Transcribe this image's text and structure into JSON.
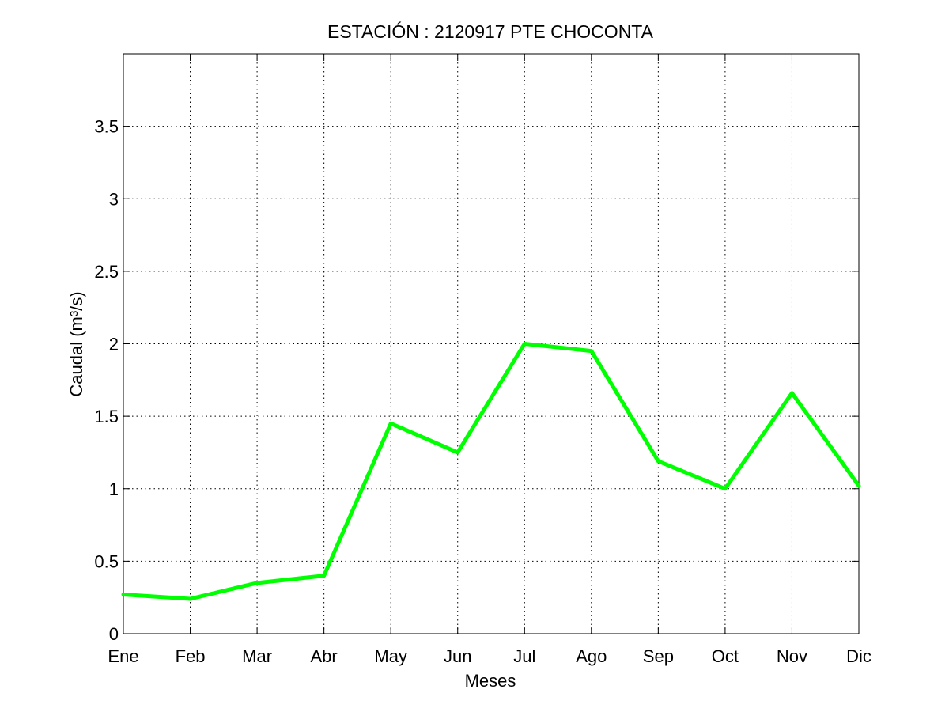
{
  "chart_data": {
    "type": "line",
    "title": "ESTACIÓN :  2120917  PTE CHOCONTA",
    "xlabel": "Meses",
    "ylabel": "Caudal (m³/s)",
    "categories": [
      "Ene",
      "Feb",
      "Mar",
      "Abr",
      "May",
      "Jun",
      "Jul",
      "Ago",
      "Sep",
      "Oct",
      "Nov",
      "Dic"
    ],
    "ylim": [
      0,
      4
    ],
    "yticks": [
      0,
      0.5,
      1,
      1.5,
      2,
      2.5,
      3,
      3.5
    ],
    "ytick_labels": [
      "0",
      "0.5",
      "1",
      "1.5",
      "2",
      "2.5",
      "3",
      "3.5"
    ],
    "grid": true,
    "series": [
      {
        "color": "#00ff00",
        "values": [
          0.27,
          0.24,
          0.35,
          0.4,
          1.45,
          1.25,
          2.0,
          1.95,
          1.19,
          1.0,
          1.66,
          1.02
        ]
      }
    ]
  }
}
